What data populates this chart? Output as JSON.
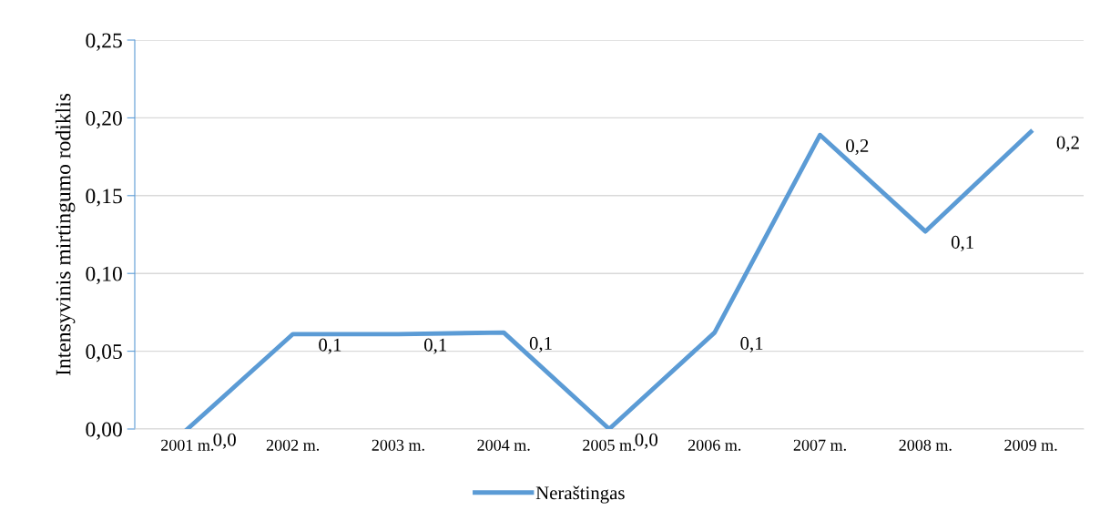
{
  "chart_data": {
    "type": "line",
    "ylabel": "Intensyvinis mirtingumo rodiklis",
    "categories": [
      "2001 m.",
      "2002 m.",
      "2003 m.",
      "2004 m.",
      "2005 m.",
      "2006 m.",
      "2007 m.",
      "2008 m.",
      "2009 m."
    ],
    "series": [
      {
        "name": "Neraštingas",
        "color": "#5b9bd5",
        "values": [
          0.0,
          0.061,
          0.061,
          0.062,
          0.0,
          0.062,
          0.189,
          0.127,
          0.191
        ],
        "value_labels": [
          "0,0",
          "0,1",
          "0,1",
          "0,1",
          "0,0",
          "0,1",
          "0,2",
          "0,1",
          "0,2"
        ]
      }
    ],
    "ylim": [
      0,
      0.25
    ],
    "yticks": [
      {
        "value": 0,
        "label": "0,00"
      },
      {
        "value": 0.05,
        "label": "0,05"
      },
      {
        "value": 0.1,
        "label": "0,10"
      },
      {
        "value": 0.15,
        "label": "0,15"
      },
      {
        "value": 0.2,
        "label": "0,20"
      },
      {
        "value": 0.25,
        "label": "0,25"
      }
    ],
    "grid": "y",
    "legend": "bottom",
    "marker": "none",
    "line_style": "solid"
  }
}
